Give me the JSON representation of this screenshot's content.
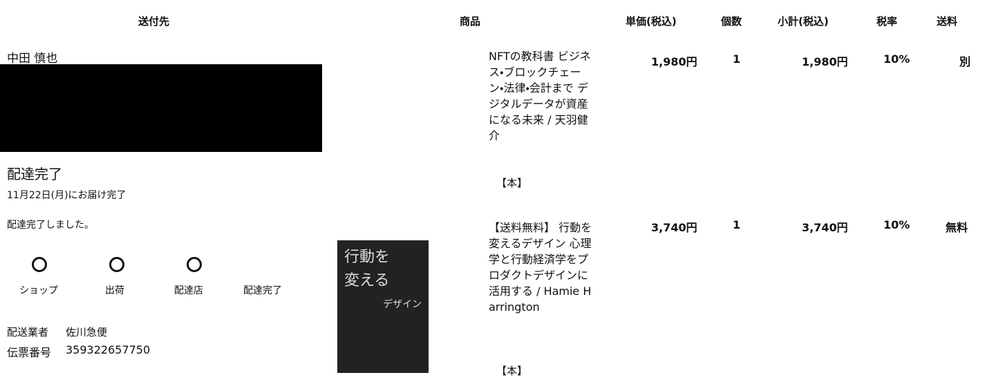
{
  "header": {
    "columns": [
      "送付先",
      "商品",
      "単価(税込)",
      "個数",
      "小計(税込)",
      "税率",
      "送料"
    ]
  },
  "recipient": {
    "name": "中田 慎也"
  },
  "delivery": {
    "status": "配達完了",
    "date": "11月22日(月)にお届け完了",
    "message": "配達完了しました。",
    "steps": [
      "ショップ",
      "出荷",
      "配達店",
      "配達完了"
    ],
    "carrier_label": "配送業者",
    "carrier": "佐川急便",
    "tracking_label": "伝票番号",
    "tracking": "359322657750"
  },
  "items": [
    {
      "title": "NFTの教科書 ビジネス・ブロックチェーン・法律・会計まで デジタルデータが資産になる未来 / 天羽健介",
      "tag": "【本】",
      "price": "1,980円",
      "qty": "1",
      "subtotal": "1,980円",
      "tax": "10%",
      "shipping": "別"
    },
    {
      "title": "【送料無料】 行動を変えるデザイン 心理学と行動経済学をプロダクトデザインに活用する / Hamie Harrington",
      "tag": "【本】",
      "price": "3,740円",
      "qty": "1",
      "subtotal": "3,740円",
      "tax": "10%",
      "shipping": "無料",
      "cover_lines": [
        "行動を",
        "変える",
        "デザイン"
      ]
    }
  ]
}
